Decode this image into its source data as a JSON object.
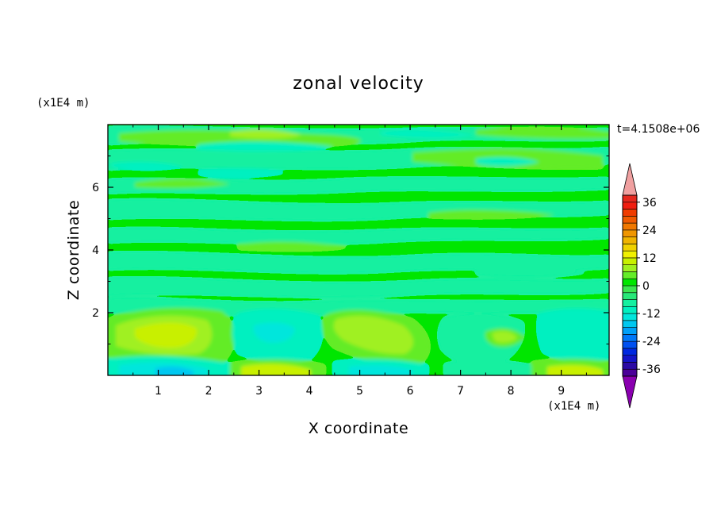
{
  "chart_data": {
    "type": "heatmap",
    "title": "zonal velocity",
    "xlabel": "X coordinate",
    "ylabel": "Z coordinate",
    "x_unit": "(x1E4 m)",
    "y_unit": "(x1E4 m)",
    "time_label": "t=4.1508e+06",
    "xlim": [
      0,
      9.95
    ],
    "ylim": [
      0,
      8
    ],
    "x_ticks": [
      "1",
      "2",
      "3",
      "4",
      "5",
      "6",
      "7",
      "8",
      "9"
    ],
    "x_tick_values": [
      1,
      2,
      3,
      4,
      5,
      6,
      7,
      8,
      9
    ],
    "y_ticks": [
      "2",
      "4",
      "6"
    ],
    "y_tick_values": [
      2,
      4,
      6
    ],
    "colorbar": {
      "levels": [
        -42,
        -39,
        -36,
        -33,
        -30,
        -27,
        -24,
        -21,
        -18,
        -15,
        -12,
        -9,
        -6,
        -3,
        0,
        3,
        6,
        9,
        12,
        15,
        18,
        21,
        24,
        27,
        30,
        33,
        36,
        39,
        42
      ],
      "labels": [
        "36",
        "24",
        "12",
        "0",
        "-12",
        "-24",
        "-36"
      ],
      "label_values": [
        36,
        24,
        12,
        0,
        -12,
        -24,
        -36
      ],
      "colors": [
        "#8a00b0",
        "#4b0098",
        "#2c0aa4",
        "#1414c8",
        "#0028e0",
        "#0050f0",
        "#0078f8",
        "#00a0f8",
        "#00c8f0",
        "#00e6dc",
        "#00f0c0",
        "#14f0a0",
        "#28e878",
        "#3ce650",
        "#00e600",
        "#64ec28",
        "#a0f020",
        "#c8f000",
        "#f0f000",
        "#f0d200",
        "#f0b400",
        "#f09600",
        "#f07800",
        "#f05a00",
        "#f03c00",
        "#f01e10",
        "#e6281e",
        "#f0a0a0"
      ],
      "extend": "both"
    },
    "features": [
      {
        "x": 1.35,
        "z": 1.5,
        "value": 12,
        "note": "strong positive lobe"
      },
      {
        "x": 5.4,
        "z": 1.4,
        "value": 9
      },
      {
        "x": 3.4,
        "z": 1.4,
        "value": -9
      },
      {
        "x": 9.0,
        "z": 1.5,
        "value": -6
      },
      {
        "x": 8.0,
        "z": 1.2,
        "value": 9
      },
      {
        "x": 3.6,
        "z": 0.1,
        "value": 12
      },
      {
        "x": 1.4,
        "z": 0.1,
        "value": -15
      },
      {
        "x": 5.0,
        "z": 0.1,
        "value": -12
      },
      {
        "x": 9.5,
        "z": 0.15,
        "value": 9
      },
      {
        "x": 3.3,
        "z": 7.65,
        "value": 9
      },
      {
        "x": 2.4,
        "z": 7.2,
        "value": -6
      },
      {
        "x": 6.8,
        "z": 7.6,
        "value": -6
      },
      {
        "x": 8.4,
        "z": 7.1,
        "value": 6
      }
    ]
  }
}
